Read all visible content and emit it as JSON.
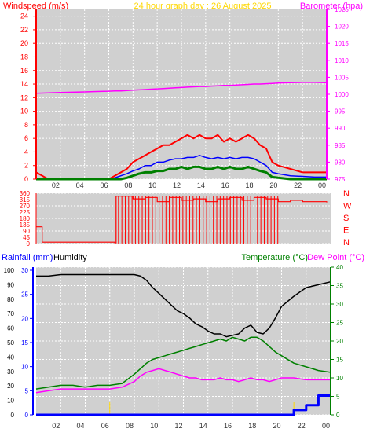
{
  "title": "24 hour graph day : 26 August 2025",
  "colors": {
    "wind": "#ff0000",
    "gust": "#0000ff",
    "avg": "#008000",
    "baro": "#ff00ff",
    "direction": "#ff0000",
    "rain_axis": "#0000ff",
    "humidity": "#000000",
    "temperature": "#008000",
    "dewpoint": "#ff00ff",
    "title": "#ffd700",
    "plot_bg": "#d0d0d0"
  },
  "x_tick_labels": [
    "02",
    "04",
    "06",
    "08",
    "10",
    "12",
    "14",
    "16",
    "18",
    "20",
    "22",
    "00"
  ],
  "chart_data": [
    {
      "type": "line",
      "title": "24 hour graph day : 26 August 2025",
      "ylabel_left": "Windspeed (m/s)",
      "ylabel_right": "Barometer (hpa)",
      "y_left_ticks": [
        "0",
        "2",
        "4",
        "6",
        "8",
        "10",
        "12",
        "14",
        "16",
        "18",
        "20",
        "22",
        "24"
      ],
      "y_right_ticks": [
        "975",
        "980",
        "985",
        "990",
        "995",
        "1000",
        "1005",
        "1010",
        "1015",
        "1020",
        "1025"
      ],
      "ylim_left": [
        0,
        25
      ],
      "ylim_right": [
        975,
        1025
      ],
      "x_hours": [
        0,
        1,
        2,
        3,
        4,
        5,
        6,
        6.5,
        7,
        7.5,
        8,
        8.5,
        9,
        9.5,
        10,
        10.5,
        11,
        11.5,
        12,
        12.5,
        13,
        13.5,
        14,
        14.5,
        15,
        15.5,
        16,
        16.5,
        17,
        17.5,
        18,
        18.5,
        19,
        19.5,
        20,
        21,
        22,
        23,
        24
      ],
      "series": [
        {
          "key": "gust",
          "values": [
            1,
            0,
            0,
            0,
            0,
            0,
            0,
            0.5,
            1,
            1.5,
            2.5,
            3,
            3.5,
            4,
            4.5,
            5,
            5,
            5.5,
            6,
            6.5,
            6,
            6.5,
            6,
            6,
            6.5,
            5.5,
            6,
            5.5,
            6,
            6.5,
            6,
            5,
            4.5,
            2.5,
            2,
            1.5,
            1,
            1,
            1
          ]
        },
        {
          "key": "average",
          "values": [
            0,
            0,
            0,
            0,
            0,
            0,
            0,
            0.2,
            0.5,
            0.8,
            1.2,
            1.5,
            2,
            2,
            2.5,
            2.5,
            2.8,
            3,
            3,
            3.2,
            3.2,
            3.5,
            3.2,
            3,
            3.2,
            3,
            3.2,
            3,
            3.2,
            3.2,
            3,
            2.5,
            2,
            1,
            0.8,
            0.5,
            0.4,
            0.3,
            0.3
          ]
        },
        {
          "key": "lull",
          "values": [
            0,
            0,
            0,
            0,
            0,
            0,
            0,
            0,
            0,
            0.2,
            0.5,
            0.8,
            1,
            1,
            1.2,
            1.2,
            1.5,
            1.5,
            1.8,
            1.5,
            1.8,
            1.8,
            1.5,
            1.5,
            1.8,
            1.5,
            1.8,
            1.5,
            1.5,
            1.8,
            1.5,
            1.2,
            1,
            0.3,
            0.2,
            0,
            0,
            0,
            0
          ]
        },
        {
          "key": "barometer",
          "values": [
            1000.3,
            1000.4,
            1000.5,
            1000.6,
            1000.7,
            1000.8,
            1000.9,
            1001,
            1001,
            1001.1,
            1001.2,
            1001.3,
            1001.4,
            1001.5,
            1001.6,
            1001.7,
            1001.8,
            1001.9,
            1002,
            1002.1,
            1002.2,
            1002.3,
            1002.3,
            1002.4,
            1002.5,
            1002.6,
            1002.6,
            1002.7,
            1002.8,
            1002.9,
            1003,
            1003,
            1003.1,
            1003.2,
            1003.3,
            1003.4,
            1003.5,
            1003.5,
            1003.4
          ]
        }
      ]
    },
    {
      "type": "line",
      "y_ticks": [
        "360",
        "315",
        "270",
        "225",
        "180",
        "135",
        "90",
        "45",
        "0"
      ],
      "compass_labels": [
        "N",
        "W",
        "S",
        "E",
        "N"
      ],
      "ylim": [
        0,
        360
      ],
      "x_hours": [
        0,
        0.4,
        0.5,
        6.5,
        6.6,
        7,
        8,
        9,
        10,
        11,
        12,
        13,
        14,
        15,
        16,
        17,
        18,
        19,
        20,
        21,
        22,
        23,
        24
      ],
      "values": [
        120,
        120,
        10,
        5,
        340,
        340,
        320,
        330,
        300,
        330,
        310,
        320,
        300,
        320,
        330,
        310,
        330,
        320,
        300,
        310,
        300,
        300,
        295
      ]
    },
    {
      "type": "line",
      "ylabel_rain": "Rainfall (mm)",
      "ylabel_humidity": "Humidity",
      "ylabel_temperature": "Temperature (°C)",
      "ylabel_dewpoint": "Dew Point (°C)",
      "humidity_ticks": [
        "0",
        "10",
        "20",
        "30",
        "40",
        "50",
        "60",
        "70",
        "80",
        "90",
        "100"
      ],
      "rain_ticks": [
        "0",
        "5",
        "10",
        "15",
        "20",
        "25",
        "30"
      ],
      "temp_ticks": [
        "0",
        "5",
        "10",
        "15",
        "20",
        "25",
        "30",
        "35",
        "40"
      ],
      "x_hours": [
        0,
        1,
        2,
        3,
        4,
        5,
        6,
        7,
        8,
        8.5,
        9,
        9.5,
        10,
        10.5,
        11,
        11.5,
        12,
        12.5,
        13,
        13.5,
        14,
        14.5,
        15,
        15.5,
        16,
        16.5,
        17,
        17.5,
        18,
        18.5,
        19,
        19.5,
        20,
        21,
        22,
        23,
        24
      ],
      "series": [
        {
          "key": "humidity",
          "values": [
            96,
            96,
            97,
            97,
            97,
            97,
            97,
            97,
            97,
            96,
            93,
            88,
            84,
            80,
            76,
            72,
            70,
            67,
            63,
            61,
            58,
            56,
            56,
            54,
            55,
            56,
            60,
            62,
            57,
            56,
            60,
            67,
            75,
            82,
            88,
            90,
            92
          ]
        },
        {
          "key": "temperature",
          "values": [
            7,
            7.5,
            8,
            8,
            7.5,
            8,
            8,
            8.5,
            11,
            12.5,
            14,
            15,
            15.5,
            16,
            16.5,
            17,
            17.5,
            18,
            18.5,
            19,
            19.5,
            20,
            20.5,
            20,
            21,
            20.5,
            20,
            21,
            21,
            20,
            18.5,
            17,
            16,
            14,
            13,
            12,
            11.5
          ]
        },
        {
          "key": "dewpoint",
          "values": [
            6,
            6.5,
            7,
            7,
            7,
            7,
            7,
            7.5,
            9,
            10.5,
            11.5,
            12,
            12.5,
            12,
            11.5,
            11,
            10.5,
            10,
            10,
            9.5,
            9.5,
            9.5,
            10,
            9.5,
            9.5,
            9,
            9.5,
            10,
            9.5,
            9.5,
            9,
            9.5,
            10,
            10,
            9.5,
            9.5,
            9.5
          ]
        },
        {
          "key": "rainfall",
          "values": [
            0,
            0,
            0,
            0,
            0,
            0,
            0,
            0,
            0,
            0,
            0,
            0,
            0,
            0,
            0,
            0,
            0,
            0,
            0,
            0,
            0,
            0,
            0,
            0,
            0,
            0,
            0,
            0,
            0,
            0,
            0,
            0,
            0,
            1,
            2,
            4,
            4
          ]
        }
      ]
    }
  ]
}
